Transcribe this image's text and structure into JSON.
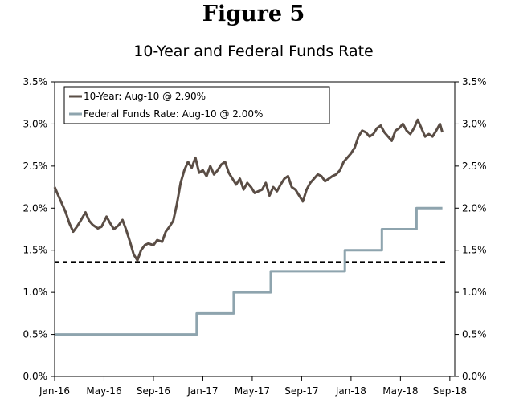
{
  "figure_label": "Figure 5",
  "chart_data": {
    "type": "line",
    "title": "10-Year and Federal Funds Rate",
    "xlabel": "",
    "ylabel": "",
    "ylim": [
      0,
      3.5
    ],
    "y_ticks": [
      "0.0%",
      "0.5%",
      "1.0%",
      "1.5%",
      "2.0%",
      "2.5%",
      "3.0%",
      "3.5%"
    ],
    "x_ticks": [
      "Jan-16",
      "May-16",
      "Sep-16",
      "Jan-17",
      "May-17",
      "Sep-17",
      "Jan-18",
      "May-18",
      "Sep-18"
    ],
    "x_tick_months": [
      0,
      4,
      8,
      12,
      16,
      20,
      24,
      28,
      32
    ],
    "x_range_months": [
      0,
      32.4
    ],
    "grid": false,
    "secondary_y_axis": true,
    "legend_position": "top-left",
    "reference_line": {
      "value": 1.36,
      "style": "dashed"
    },
    "series": [
      {
        "name": "10-Year: Aug-10 @ 2.90%",
        "color": "#5a4d45",
        "x_months": [
          0,
          0.3,
          0.6,
          0.9,
          1.2,
          1.5,
          1.8,
          2.1,
          2.5,
          2.8,
          3.1,
          3.5,
          3.8,
          4.2,
          4.5,
          4.8,
          5.2,
          5.5,
          5.8,
          6.1,
          6.4,
          6.7,
          7.0,
          7.3,
          7.6,
          8.0,
          8.3,
          8.7,
          9.0,
          9.3,
          9.6,
          9.9,
          10.2,
          10.5,
          10.8,
          11.1,
          11.4,
          11.7,
          12.0,
          12.3,
          12.6,
          12.9,
          13.2,
          13.5,
          13.8,
          14.1,
          14.4,
          14.7,
          15.0,
          15.3,
          15.6,
          15.9,
          16.2,
          16.5,
          16.8,
          17.1,
          17.4,
          17.7,
          18.0,
          18.3,
          18.6,
          18.9,
          19.2,
          19.5,
          19.8,
          20.1,
          20.4,
          20.7,
          21.0,
          21.3,
          21.6,
          21.9,
          22.2,
          22.5,
          22.8,
          23.1,
          23.4,
          23.7,
          24.0,
          24.3,
          24.6,
          24.9,
          25.2,
          25.5,
          25.8,
          26.1,
          26.4,
          26.7,
          27.0,
          27.3,
          27.6,
          27.9,
          28.2,
          28.5,
          28.8,
          29.1,
          29.4,
          29.7,
          30.0,
          30.3,
          30.6,
          30.9,
          31.2,
          31.4
        ],
        "values": [
          2.25,
          2.15,
          2.05,
          1.95,
          1.82,
          1.72,
          1.78,
          1.85,
          1.95,
          1.85,
          1.8,
          1.76,
          1.78,
          1.9,
          1.82,
          1.75,
          1.8,
          1.86,
          1.74,
          1.6,
          1.45,
          1.38,
          1.5,
          1.56,
          1.58,
          1.56,
          1.62,
          1.6,
          1.72,
          1.78,
          1.85,
          2.05,
          2.3,
          2.45,
          2.55,
          2.48,
          2.6,
          2.42,
          2.45,
          2.38,
          2.5,
          2.4,
          2.45,
          2.52,
          2.55,
          2.42,
          2.35,
          2.28,
          2.35,
          2.22,
          2.3,
          2.25,
          2.18,
          2.2,
          2.22,
          2.3,
          2.15,
          2.25,
          2.2,
          2.28,
          2.35,
          2.38,
          2.25,
          2.22,
          2.15,
          2.08,
          2.22,
          2.3,
          2.35,
          2.4,
          2.38,
          2.32,
          2.35,
          2.38,
          2.4,
          2.45,
          2.55,
          2.6,
          2.65,
          2.72,
          2.85,
          2.92,
          2.9,
          2.85,
          2.88,
          2.95,
          2.98,
          2.9,
          2.85,
          2.8,
          2.92,
          2.95,
          3.0,
          2.92,
          2.88,
          2.95,
          3.05,
          2.95,
          2.85,
          2.88,
          2.85,
          2.92,
          3.0,
          2.9
        ]
      },
      {
        "name": "Federal Funds Rate: Aug-10 @ 2.00%",
        "color": "#8ea4ae",
        "x_months": [
          0,
          11.5,
          11.5,
          14.5,
          14.5,
          17.5,
          17.5,
          23.5,
          23.5,
          26.5,
          26.5,
          29.3,
          29.3,
          31.4
        ],
        "values": [
          0.5,
          0.5,
          0.75,
          0.75,
          1.0,
          1.0,
          1.25,
          1.25,
          1.5,
          1.5,
          1.75,
          1.75,
          2.0,
          2.0
        ]
      }
    ]
  }
}
